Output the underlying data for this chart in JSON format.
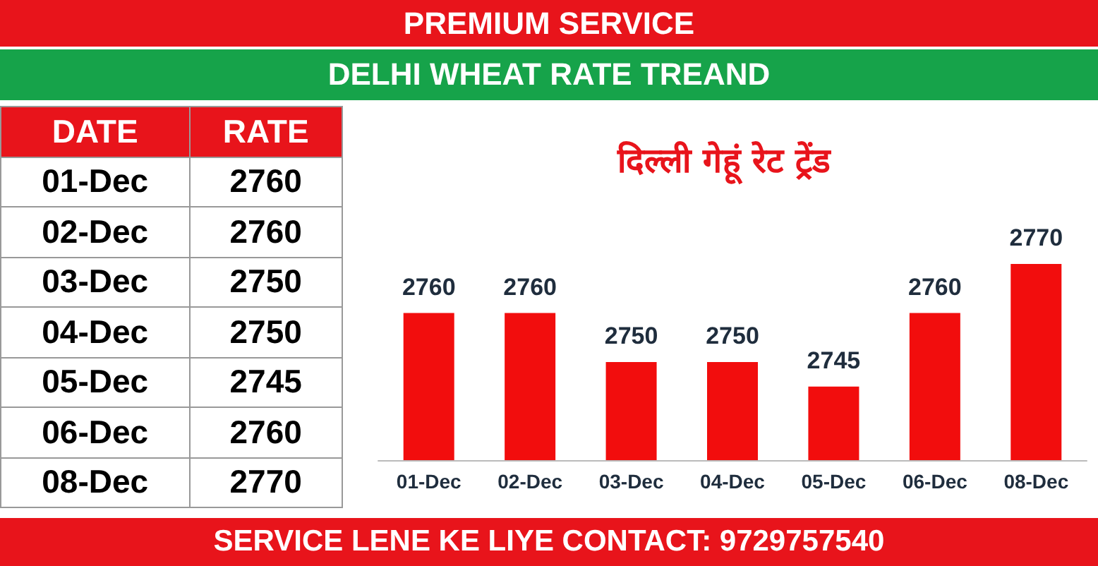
{
  "chart_data": {
    "type": "bar",
    "title": "दिल्ली गेहूं रेट ट्रेंड",
    "subtitle": "DELHI WHEAT RATE TREAND",
    "annotations": [
      "PREMIUM SERVICE",
      "SERVICE LENE KE LIYE CONTACT: 9729757540",
      "DATE",
      "RATE",
      "2760",
      "2760",
      "2750",
      "2750",
      "2745",
      "2760",
      "2770"
    ],
    "categories": [
      "01-Dec",
      "02-Dec",
      "03-Dec",
      "04-Dec",
      "05-Dec",
      "06-Dec",
      "08-Dec"
    ],
    "values": [
      2760,
      2760,
      2750,
      2750,
      2745,
      2760,
      2770
    ],
    "color": "#f20d0d",
    "ylim": [
      2730,
      2770
    ],
    "tick_labels": "x",
    "data_labels": true
  }
}
